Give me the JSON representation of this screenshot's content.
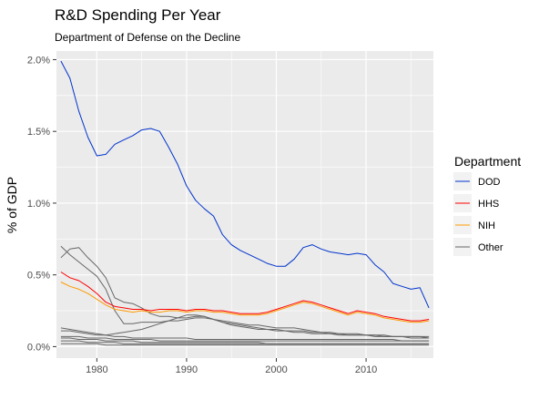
{
  "chart_data": {
    "type": "line",
    "title": "R&D Spending Per Year",
    "subtitle": "Department of Defense on the Decline",
    "xlabel": "",
    "ylabel": "% of GDP",
    "xlim": [
      1975.5,
      2017.5
    ],
    "ylim": [
      -0.0008,
      0.0206
    ],
    "x_ticks": [
      1980,
      1990,
      2000,
      2010
    ],
    "x_tick_labels": [
      "1980",
      "1990",
      "2000",
      "2010"
    ],
    "y_ticks": [
      0,
      0.005,
      0.01,
      0.015,
      0.02
    ],
    "y_tick_labels": [
      "0.0%",
      "0.5%",
      "1.0%",
      "1.5%",
      "2.0%"
    ],
    "grid": true,
    "legend": {
      "title": "Department",
      "position": "right"
    },
    "colors": {
      "DOD": "#0033cc",
      "HHS": "#ff0000",
      "NIH": "#ff9900",
      "Other": "#666666",
      "panel": "#ebebeb",
      "grid": "#ffffff"
    },
    "series": [
      {
        "name": "DOD",
        "x": [
          1976,
          1977,
          1978,
          1979,
          1980,
          1981,
          1982,
          1983,
          1984,
          1985,
          1986,
          1987,
          1988,
          1989,
          1990,
          1991,
          1992,
          1993,
          1994,
          1995,
          1996,
          1997,
          1998,
          1999,
          2000,
          2001,
          2002,
          2003,
          2004,
          2005,
          2006,
          2007,
          2008,
          2009,
          2010,
          2011,
          2012,
          2013,
          2014,
          2015,
          2016,
          2017
        ],
        "values": [
          0.0199,
          0.0187,
          0.0164,
          0.0146,
          0.0133,
          0.0134,
          0.0141,
          0.0144,
          0.0147,
          0.0151,
          0.0152,
          0.015,
          0.0139,
          0.0127,
          0.0112,
          0.0102,
          0.0096,
          0.0091,
          0.0078,
          0.0071,
          0.0067,
          0.0064,
          0.0061,
          0.0058,
          0.0056,
          0.0056,
          0.0061,
          0.0069,
          0.0071,
          0.0068,
          0.0066,
          0.0065,
          0.0064,
          0.0065,
          0.0064,
          0.0057,
          0.0052,
          0.0044,
          0.0042,
          0.004,
          0.0041,
          0.0027
        ]
      },
      {
        "name": "HHS",
        "x": [
          1976,
          1977,
          1978,
          1979,
          1980,
          1981,
          1982,
          1983,
          1984,
          1985,
          1986,
          1987,
          1988,
          1989,
          1990,
          1991,
          1992,
          1993,
          1994,
          1995,
          1996,
          1997,
          1998,
          1999,
          2000,
          2001,
          2002,
          2003,
          2004,
          2005,
          2006,
          2007,
          2008,
          2009,
          2010,
          2011,
          2012,
          2013,
          2014,
          2015,
          2016,
          2017
        ],
        "values": [
          0.0052,
          0.0048,
          0.0046,
          0.0042,
          0.0037,
          0.0031,
          0.0028,
          0.0027,
          0.0026,
          0.0026,
          0.0025,
          0.0026,
          0.0026,
          0.0026,
          0.0025,
          0.0026,
          0.0026,
          0.0025,
          0.0025,
          0.0024,
          0.0023,
          0.0023,
          0.0023,
          0.0024,
          0.0026,
          0.0028,
          0.003,
          0.0032,
          0.0031,
          0.0029,
          0.0027,
          0.0025,
          0.0023,
          0.0025,
          0.0024,
          0.0023,
          0.0021,
          0.002,
          0.0019,
          0.0018,
          0.0018,
          0.0019
        ]
      },
      {
        "name": "NIH",
        "x": [
          1976,
          1977,
          1978,
          1979,
          1980,
          1981,
          1982,
          1983,
          1984,
          1985,
          1986,
          1987,
          1988,
          1989,
          1990,
          1991,
          1992,
          1993,
          1994,
          1995,
          1996,
          1997,
          1998,
          1999,
          2000,
          2001,
          2002,
          2003,
          2004,
          2005,
          2006,
          2007,
          2008,
          2009,
          2010,
          2011,
          2012,
          2013,
          2014,
          2015,
          2016,
          2017
        ],
        "values": [
          0.0045,
          0.0042,
          0.004,
          0.0037,
          0.0033,
          0.0029,
          0.0026,
          0.0025,
          0.0024,
          0.0025,
          0.0024,
          0.0024,
          0.0025,
          0.0025,
          0.0024,
          0.0025,
          0.0025,
          0.0024,
          0.0024,
          0.0023,
          0.0022,
          0.0022,
          0.0022,
          0.0023,
          0.0025,
          0.0027,
          0.0029,
          0.0031,
          0.003,
          0.0028,
          0.0026,
          0.0024,
          0.0022,
          0.0024,
          0.0023,
          0.0022,
          0.002,
          0.0019,
          0.0018,
          0.0017,
          0.0017,
          0.0018
        ]
      },
      {
        "name": "Other",
        "x": [
          1976,
          1977,
          1978,
          1979,
          1980,
          1981,
          1982,
          1983,
          1984,
          1985,
          1986,
          1987,
          1988,
          1989,
          1990,
          1991,
          1992,
          1993,
          1994,
          1995,
          1996,
          1997,
          1998,
          1999,
          2000,
          2001,
          2002,
          2003,
          2004,
          2005,
          2006,
          2007,
          2008,
          2009,
          2010,
          2011,
          2012,
          2013,
          2014,
          2015,
          2016,
          2017
        ],
        "values": [
          0.0062,
          0.0068,
          0.0069,
          0.0062,
          0.0056,
          0.0048,
          0.0034,
          0.0031,
          0.003,
          0.0027,
          0.0023,
          0.0021,
          0.0021,
          0.002,
          0.002,
          0.0021,
          0.0021,
          0.0019,
          0.0018,
          0.0017,
          0.0016,
          0.0015,
          0.0015,
          0.0014,
          0.0013,
          0.0013,
          0.0013,
          0.0012,
          0.0011,
          0.001,
          0.001,
          0.0009,
          0.0009,
          0.0009,
          0.0008,
          0.0008,
          0.0008,
          0.0007,
          0.0007,
          0.0007,
          0.0007,
          0.0006
        ]
      },
      {
        "name": "Other",
        "x": [
          1976,
          1977,
          1978,
          1979,
          1980,
          1981,
          1982,
          1983,
          1984,
          1985,
          1986,
          1987,
          1988,
          1989,
          1990,
          1991,
          1992,
          1993,
          1994,
          1995,
          1996,
          1997,
          1998,
          1999,
          2000,
          2001,
          2002,
          2003,
          2004,
          2005,
          2006,
          2007,
          2008,
          2009,
          2010,
          2011,
          2012,
          2013,
          2014,
          2015,
          2016,
          2017
        ],
        "values": [
          0.007,
          0.0064,
          0.0059,
          0.0054,
          0.0049,
          0.004,
          0.0025,
          0.0016,
          0.0016,
          0.0017,
          0.0017,
          0.0017,
          0.0018,
          0.0018,
          0.0019,
          0.002,
          0.002,
          0.0019,
          0.0017,
          0.0016,
          0.0015,
          0.0014,
          0.0013,
          0.0012,
          0.0012,
          0.0011,
          0.0011,
          0.0011,
          0.001,
          0.001,
          0.0009,
          0.0009,
          0.0008,
          0.0008,
          0.0008,
          0.0007,
          0.0007,
          0.0007,
          0.0007,
          0.0006,
          0.0006,
          0.0006
        ]
      },
      {
        "name": "Other",
        "x": [
          1976,
          1977,
          1978,
          1979,
          1980,
          1981,
          1982,
          1983,
          1984,
          1985,
          1986,
          1987,
          1988,
          1989,
          1990,
          1991,
          1992,
          1993,
          1994,
          1995,
          1996,
          1997,
          1998,
          1999,
          2000,
          2001,
          2002,
          2003,
          2004,
          2005,
          2006,
          2007,
          2008,
          2009,
          2010,
          2011,
          2012,
          2013,
          2014,
          2015,
          2016,
          2017
        ],
        "values": [
          0.0013,
          0.0012,
          0.0011,
          0.001,
          0.0009,
          0.0008,
          0.0007,
          0.0007,
          0.0006,
          0.0006,
          0.0006,
          0.0006,
          0.0006,
          0.0006,
          0.0006,
          0.0005,
          0.0005,
          0.0005,
          0.0005,
          0.0005,
          0.0005,
          0.0005,
          0.0005,
          0.0005,
          0.0005,
          0.0005,
          0.0005,
          0.0005,
          0.0005,
          0.0005,
          0.0005,
          0.0005,
          0.0005,
          0.0005,
          0.0005,
          0.0005,
          0.0005,
          0.0005,
          0.0004,
          0.0004,
          0.0004,
          0.0004
        ]
      },
      {
        "name": "Other",
        "x": [
          1976,
          1977,
          1978,
          1979,
          1980,
          1981,
          1982,
          1983,
          1984,
          1985,
          1986,
          1987,
          1988,
          1989,
          1990,
          1991,
          1992,
          1993,
          1994,
          1995,
          1996,
          1997,
          1998,
          1999,
          2000,
          2001,
          2002,
          2003,
          2004,
          2005,
          2006,
          2007,
          2008,
          2009,
          2010,
          2011,
          2012,
          2013,
          2014,
          2015,
          2016,
          2017
        ],
        "values": [
          0.0011,
          0.0011,
          0.001,
          0.0009,
          0.0008,
          0.0008,
          0.0009,
          0.001,
          0.0011,
          0.0012,
          0.0014,
          0.0016,
          0.0018,
          0.002,
          0.0022,
          0.0022,
          0.0021,
          0.0019,
          0.0017,
          0.0015,
          0.0014,
          0.0013,
          0.0012,
          0.0012,
          0.0011,
          0.0011,
          0.001,
          0.001,
          0.0009,
          0.0009,
          0.0009,
          0.0008,
          0.0008,
          0.0008,
          0.0008,
          0.0008,
          0.0007,
          0.0007,
          0.0007,
          0.0007,
          0.0007,
          0.0007
        ]
      },
      {
        "name": "Other",
        "x": [
          1976,
          1977,
          1978,
          1979,
          1980,
          1981,
          1982,
          1983,
          1984,
          1985,
          1986,
          1987,
          1988,
          1989,
          1990,
          1991,
          1992,
          1993,
          1994,
          1995,
          1996,
          1997,
          1998,
          1999,
          2000,
          2001,
          2002,
          2003,
          2004,
          2005,
          2006,
          2007,
          2008,
          2009,
          2010,
          2011,
          2012,
          2013,
          2014,
          2015,
          2016,
          2017
        ],
        "values": [
          0.0007,
          0.0007,
          0.0007,
          0.0006,
          0.0006,
          0.0006,
          0.0005,
          0.0005,
          0.0005,
          0.0005,
          0.0005,
          0.0004,
          0.0004,
          0.0004,
          0.0004,
          0.0004,
          0.0004,
          0.0004,
          0.0004,
          0.0004,
          0.0004,
          0.0004,
          0.0004,
          0.0004,
          0.0004,
          0.0004,
          0.0004,
          0.0004,
          0.0004,
          0.0004,
          0.0004,
          0.0004,
          0.0004,
          0.0004,
          0.0004,
          0.0004,
          0.0004,
          0.0004,
          0.0004,
          0.0004,
          0.0004,
          0.0004
        ]
      },
      {
        "name": "Other",
        "x": [
          1976,
          1977,
          1978,
          1979,
          1980,
          1981,
          1982,
          1983,
          1984,
          1985,
          1986,
          1987,
          1988,
          1989,
          1990,
          1991,
          1992,
          1993,
          1994,
          1995,
          1996,
          1997,
          1998,
          1999,
          2000,
          2001,
          2002,
          2003,
          2004,
          2005,
          2006,
          2007,
          2008,
          2009,
          2010,
          2011,
          2012,
          2013,
          2014,
          2015,
          2016,
          2017
        ],
        "values": [
          0.0006,
          0.0006,
          0.0005,
          0.0005,
          0.0005,
          0.0004,
          0.0004,
          0.0004,
          0.0004,
          0.0003,
          0.0003,
          0.0003,
          0.0003,
          0.0003,
          0.0003,
          0.0003,
          0.0003,
          0.0003,
          0.0003,
          0.0003,
          0.0003,
          0.0003,
          0.0003,
          0.0002,
          0.0002,
          0.0002,
          0.0002,
          0.0002,
          0.0002,
          0.0002,
          0.0002,
          0.0002,
          0.0002,
          0.0002,
          0.0002,
          0.0002,
          0.0002,
          0.0002,
          0.0002,
          0.0002,
          0.0002,
          0.0002
        ]
      },
      {
        "name": "Other",
        "x": [
          1976,
          1977,
          1978,
          1979,
          1980,
          1981,
          1982,
          1983,
          1984,
          1985,
          1986,
          1987,
          1988,
          1989,
          1990,
          1991,
          1992,
          1993,
          1994,
          1995,
          1996,
          1997,
          1998,
          1999,
          2000,
          2001,
          2002,
          2003,
          2004,
          2005,
          2006,
          2007,
          2008,
          2009,
          2010,
          2011,
          2012,
          2013,
          2014,
          2015,
          2016,
          2017
        ],
        "values": [
          0.0004,
          0.0004,
          0.0004,
          0.0003,
          0.0003,
          0.0003,
          0.0003,
          0.0002,
          0.0002,
          0.0002,
          0.0002,
          0.0002,
          0.0002,
          0.0002,
          0.0002,
          0.0002,
          0.0002,
          0.0002,
          0.0002,
          0.0002,
          0.0002,
          0.0002,
          0.0002,
          0.0002,
          0.0002,
          0.0002,
          0.0002,
          0.0002,
          0.0002,
          0.0002,
          0.0002,
          0.0002,
          0.0002,
          0.0002,
          0.0002,
          0.0002,
          0.0002,
          0.0002,
          0.0002,
          0.0002,
          0.0002,
          0.0002
        ]
      },
      {
        "name": "Other",
        "x": [
          1976,
          1977,
          1978,
          1979,
          1980,
          1981,
          1982,
          1983,
          1984,
          1985,
          1986,
          1987,
          1988,
          1989,
          1990,
          1991,
          1992,
          1993,
          1994,
          1995,
          1996,
          1997,
          1998,
          1999,
          2000,
          2001,
          2002,
          2003,
          2004,
          2005,
          2006,
          2007,
          2008,
          2009,
          2010,
          2011,
          2012,
          2013,
          2014,
          2015,
          2016,
          2017
        ],
        "values": [
          0.0002,
          0.0002,
          0.0002,
          0.0002,
          0.0002,
          0.0001,
          0.0001,
          0.0001,
          0.0001,
          0.0001,
          0.0001,
          0.0001,
          0.0001,
          0.0001,
          0.0001,
          0.0001,
          0.0001,
          0.0001,
          0.0001,
          0.0001,
          0.0001,
          0.0001,
          0.0001,
          0.0001,
          0.0001,
          0.0001,
          0.0001,
          0.0001,
          0.0001,
          0.0001,
          0.0001,
          0.0001,
          0.0001,
          0.0001,
          0.0001,
          0.0001,
          0.0001,
          0.0001,
          0.0001,
          0.0001,
          0.0001,
          0.0001
        ]
      }
    ]
  }
}
